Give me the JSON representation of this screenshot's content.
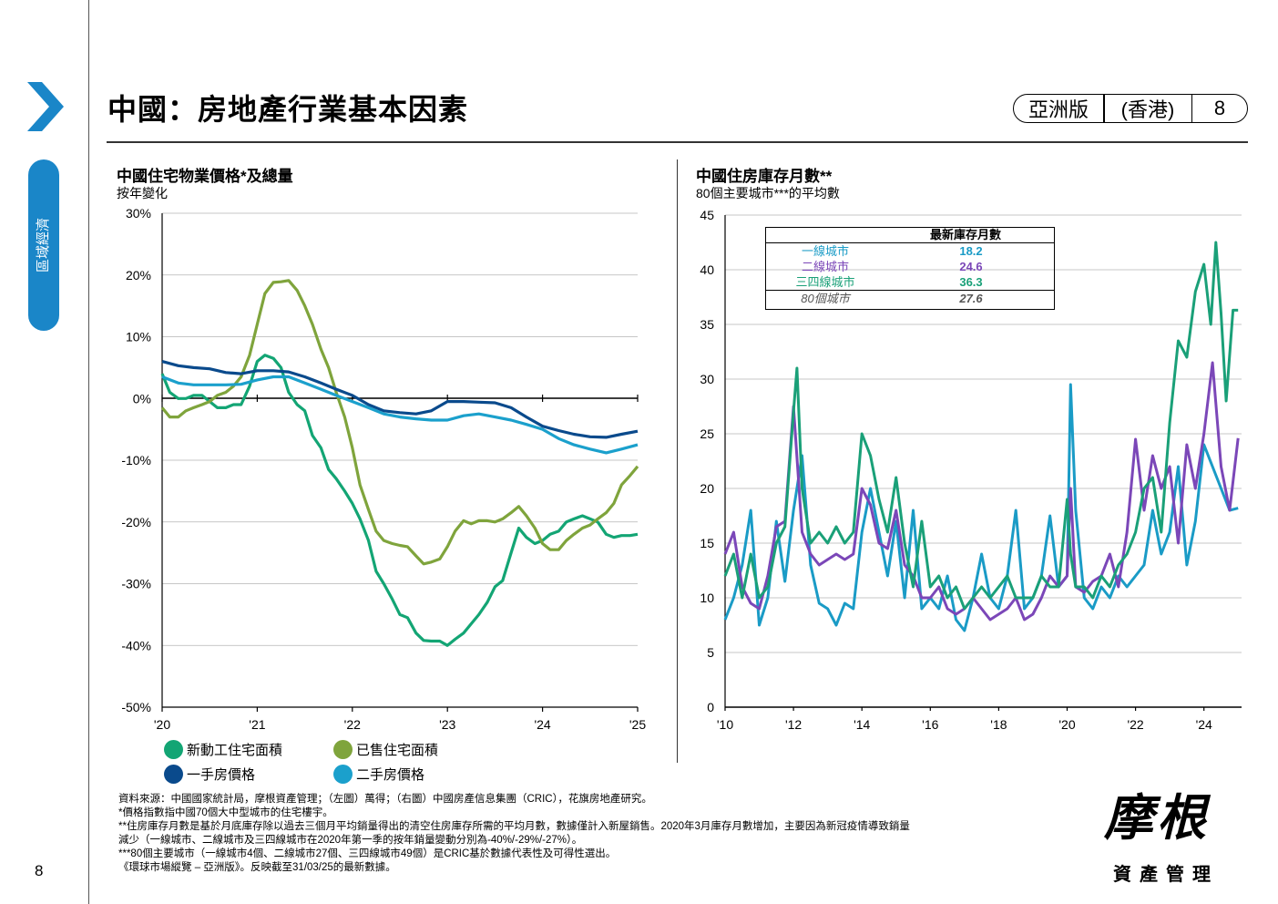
{
  "page": {
    "title": "中國：房地產行業基本因素",
    "badge": [
      "亞洲版",
      "(香港)",
      "8"
    ],
    "side_tab": "區域經濟",
    "page_number": "8"
  },
  "left_chart": {
    "title": "中國住宅物業價格*及總量",
    "subtitle": "按年變化",
    "legend": [
      "新動工住宅面積",
      "已售住宅面積",
      "一手房價格",
      "二手房價格"
    ]
  },
  "right_chart": {
    "title": "中國住房庫存月數**",
    "subtitle": "80個主要城市***的平均數",
    "table_header": "最新庫存月數",
    "table_rows": [
      {
        "label": "一線城市",
        "value": "18.2",
        "color": "#1a9bc6"
      },
      {
        "label": "二線城市",
        "value": "24.6",
        "color": "#7b47b8"
      },
      {
        "label": "三四線城市",
        "value": "36.3",
        "color": "#1aa078"
      },
      {
        "label": "80個城市",
        "value": "27.6",
        "color": "#555555"
      }
    ]
  },
  "notes": [
    "資料來源：中國國家統計局，摩根資產管理；（左圖）萬得；（右圖）中國房產信息集團（CRIC），花旗房地產研究。",
    "*價格指數指中國70個大中型城市的住宅樓宇。",
    "**住房庫存月數是基於月底庫存除以過去三個月平均銷量得出的清空住房庫存所需的平均月數，數據僅計入新屋銷售。2020年3月庫存月數增加，主要因為新冠疫情導致銷量",
    "減少（一線城市、二線城市及三四線城市在2020年第一季的按年銷量變動分別為-40%/-29%/-27%）。",
    "***80個主要城市（一線城市4個、二線城市27個、三四線城市49個）是CRIC基於數據代表性及可得性選出。",
    "《環球市場縱覽 – 亞洲版》。反映截至31/03/25的最新數據。"
  ],
  "logo": {
    "main": "摩根",
    "sub": "資產管理"
  },
  "chart_data": [
    {
      "type": "line",
      "title": "中國住宅物業價格*及總量",
      "subtitle": "按年變化",
      "x_ticks": [
        "'20",
        "'21",
        "'22",
        "'23",
        "'24",
        "'25"
      ],
      "y_ticks": [
        "30%",
        "20%",
        "10%",
        "0%",
        "-10%",
        "-20%",
        "-30%",
        "-40%",
        "-50%"
      ],
      "ylim": [
        -50,
        30
      ],
      "x_range": [
        2020.0,
        2025.0
      ],
      "series": [
        {
          "name": "新動工住宅面積",
          "color": "#13a574",
          "x": [
            2020.0,
            2020.08,
            2020.17,
            2020.25,
            2020.33,
            2020.42,
            2020.5,
            2020.58,
            2020.67,
            2020.75,
            2020.83,
            2020.92,
            2021.0,
            2021.08,
            2021.17,
            2021.25,
            2021.33,
            2021.42,
            2021.5,
            2021.58,
            2021.67,
            2021.75,
            2021.83,
            2021.92,
            2022.0,
            2022.08,
            2022.17,
            2022.25,
            2022.33,
            2022.42,
            2022.5,
            2022.58,
            2022.67,
            2022.75,
            2022.83,
            2022.92,
            2023.0,
            2023.08,
            2023.17,
            2023.25,
            2023.33,
            2023.42,
            2023.5,
            2023.58,
            2023.67,
            2023.75,
            2023.83,
            2023.92,
            2024.0,
            2024.08,
            2024.17,
            2024.25,
            2024.33,
            2024.42,
            2024.5,
            2024.58,
            2024.67,
            2024.75,
            2024.83,
            2024.92,
            2025.0
          ],
          "y": [
            4,
            1,
            0,
            0,
            0.5,
            0.5,
            -0.5,
            -1.5,
            -1.5,
            -1,
            -1,
            2,
            6,
            7,
            6.5,
            5,
            1,
            -1,
            -2,
            -6,
            -8,
            -11.5,
            -13,
            -15,
            -17,
            -19.5,
            -23,
            -28,
            -30,
            -32.5,
            -35,
            -35.5,
            -38,
            -39.2,
            -39.3,
            -39.3,
            -40,
            -39,
            -38,
            -36.5,
            -35,
            -33,
            -30.5,
            -29.5,
            -25,
            -21,
            -22.5,
            -23.5,
            -23,
            -22,
            -21.5,
            -20,
            -19.5,
            -19,
            -19.5,
            -20,
            -22,
            -22.5,
            -22.2,
            -22.2,
            -22
          ]
        },
        {
          "name": "已售住宅面積",
          "color": "#7fa43c",
          "x": [
            2020.0,
            2020.08,
            2020.17,
            2020.25,
            2020.33,
            2020.42,
            2020.5,
            2020.58,
            2020.67,
            2020.75,
            2020.83,
            2020.92,
            2021.0,
            2021.08,
            2021.17,
            2021.25,
            2021.33,
            2021.42,
            2021.5,
            2021.58,
            2021.67,
            2021.75,
            2021.83,
            2021.92,
            2022.0,
            2022.08,
            2022.17,
            2022.25,
            2022.33,
            2022.42,
            2022.5,
            2022.58,
            2022.67,
            2022.75,
            2022.83,
            2022.92,
            2023.0,
            2023.08,
            2023.17,
            2023.25,
            2023.33,
            2023.42,
            2023.5,
            2023.58,
            2023.67,
            2023.75,
            2023.83,
            2023.92,
            2024.0,
            2024.08,
            2024.17,
            2024.25,
            2024.33,
            2024.42,
            2024.5,
            2024.58,
            2024.67,
            2024.75,
            2024.83,
            2024.92,
            2025.0
          ],
          "y": [
            -1.5,
            -3,
            -3,
            -2,
            -1.5,
            -1,
            -0.5,
            0.5,
            1,
            2,
            3.5,
            7,
            12,
            17,
            18.8,
            18.9,
            19.1,
            17.5,
            15,
            12,
            8,
            5,
            1,
            -3,
            -8,
            -14,
            -18,
            -21.5,
            -23,
            -23.5,
            -23.8,
            -24,
            -25.5,
            -26.8,
            -26.5,
            -26,
            -24,
            -21.5,
            -19.8,
            -20.3,
            -19.8,
            -19.8,
            -20,
            -19.5,
            -18.5,
            -17.5,
            -19,
            -21,
            -23.5,
            -24.5,
            -24.5,
            -23,
            -22,
            -21,
            -20.5,
            -19.5,
            -18.5,
            -17,
            -14,
            -12.5,
            -11
          ]
        },
        {
          "name": "一手房價格",
          "color": "#0a4a8c",
          "x": [
            2020.0,
            2020.17,
            2020.33,
            2020.5,
            2020.67,
            2020.83,
            2021.0,
            2021.17,
            2021.33,
            2021.5,
            2021.67,
            2021.83,
            2022.0,
            2022.17,
            2022.33,
            2022.5,
            2022.67,
            2022.83,
            2023.0,
            2023.17,
            2023.33,
            2023.5,
            2023.67,
            2023.83,
            2024.0,
            2024.17,
            2024.33,
            2024.5,
            2024.67,
            2024.83,
            2025.0
          ],
          "y": [
            6,
            5.3,
            5,
            4.8,
            4.2,
            4,
            4.5,
            4.5,
            4.3,
            3.5,
            2.5,
            1.5,
            0.5,
            -1,
            -2,
            -2.3,
            -2.5,
            -2,
            -0.5,
            -0.5,
            -0.6,
            -0.7,
            -1.5,
            -3,
            -4.5,
            -5.2,
            -5.8,
            -6.2,
            -6.3,
            -5.8,
            -5.3
          ]
        },
        {
          "name": "二手房價格",
          "color": "#1ba0cc",
          "x": [
            2020.0,
            2020.17,
            2020.33,
            2020.5,
            2020.67,
            2020.83,
            2021.0,
            2021.17,
            2021.33,
            2021.5,
            2021.67,
            2021.83,
            2022.0,
            2022.17,
            2022.33,
            2022.5,
            2022.67,
            2022.83,
            2023.0,
            2023.17,
            2023.33,
            2023.5,
            2023.67,
            2023.83,
            2024.0,
            2024.17,
            2024.33,
            2024.5,
            2024.67,
            2024.83,
            2025.0
          ],
          "y": [
            3.5,
            2.5,
            2.2,
            2.2,
            2.2,
            2.3,
            3,
            3.5,
            3.5,
            2.5,
            1.5,
            0.5,
            -0.5,
            -1.5,
            -2.5,
            -3,
            -3.3,
            -3.5,
            -3.5,
            -2.8,
            -2.5,
            -3,
            -3.5,
            -4.2,
            -5,
            -6.5,
            -7.5,
            -8.2,
            -8.8,
            -8.2,
            -7.5
          ]
        }
      ],
      "legend_placement": "bottom"
    },
    {
      "type": "line",
      "title": "中國住房庫存月數**",
      "subtitle": "80個主要城市***的平均數",
      "x_ticks": [
        "'10",
        "'12",
        "'14",
        "'16",
        "'18",
        "'20",
        "'22",
        "'24"
      ],
      "y_ticks": [
        "45",
        "40",
        "35",
        "30",
        "25",
        "20",
        "15",
        "10",
        "5",
        "0"
      ],
      "ylim": [
        0,
        45
      ],
      "x_range": [
        2010.0,
        2025.1
      ],
      "series": [
        {
          "name": "一線城市",
          "color": "#1a9bc6",
          "x": [
            2010.0,
            2010.25,
            2010.5,
            2010.75,
            2011.0,
            2011.25,
            2011.5,
            2011.75,
            2012.0,
            2012.25,
            2012.5,
            2012.75,
            2013.0,
            2013.25,
            2013.5,
            2013.75,
            2014.0,
            2014.25,
            2014.5,
            2014.75,
            2015.0,
            2015.25,
            2015.5,
            2015.75,
            2016.0,
            2016.25,
            2016.5,
            2016.75,
            2017.0,
            2017.25,
            2017.5,
            2017.75,
            2018.0,
            2018.25,
            2018.5,
            2018.75,
            2019.0,
            2019.25,
            2019.5,
            2019.75,
            2020.0,
            2020.1,
            2020.25,
            2020.5,
            2020.75,
            2021.0,
            2021.25,
            2021.5,
            2021.75,
            2022.0,
            2022.25,
            2022.5,
            2022.75,
            2023.0,
            2023.25,
            2023.5,
            2023.75,
            2024.0,
            2024.25,
            2024.5,
            2024.75,
            2025.0
          ],
          "y": [
            8,
            10,
            13,
            18,
            7.5,
            10,
            17,
            11.5,
            18,
            23,
            13,
            9.5,
            9,
            7.5,
            9.5,
            9,
            16,
            20,
            16,
            12,
            17,
            10,
            18,
            9,
            10,
            9,
            12,
            8,
            7,
            10,
            14,
            10,
            9,
            12,
            18,
            9,
            10,
            12,
            17.5,
            11,
            12,
            29.5,
            18,
            10,
            9,
            11,
            10,
            12,
            11,
            12,
            13,
            18,
            14,
            16,
            22,
            13,
            17,
            24,
            22,
            20,
            18,
            18.2
          ]
        },
        {
          "name": "二線城市",
          "color": "#7b47b8",
          "x": [
            2010.0,
            2010.25,
            2010.5,
            2010.75,
            2011.0,
            2011.25,
            2011.5,
            2011.75,
            2012.0,
            2012.25,
            2012.5,
            2012.75,
            2013.0,
            2013.25,
            2013.5,
            2013.75,
            2014.0,
            2014.25,
            2014.5,
            2014.75,
            2015.0,
            2015.25,
            2015.5,
            2015.75,
            2016.0,
            2016.25,
            2016.5,
            2016.75,
            2017.0,
            2017.25,
            2017.5,
            2017.75,
            2018.0,
            2018.25,
            2018.5,
            2018.75,
            2019.0,
            2019.25,
            2019.5,
            2019.75,
            2020.0,
            2020.1,
            2020.25,
            2020.5,
            2020.75,
            2021.0,
            2021.25,
            2021.5,
            2021.75,
            2022.0,
            2022.25,
            2022.5,
            2022.75,
            2023.0,
            2023.25,
            2023.5,
            2023.75,
            2024.0,
            2024.25,
            2024.5,
            2024.75,
            2025.0
          ],
          "y": [
            14,
            16,
            11,
            9.5,
            9,
            12,
            16.5,
            17,
            27.5,
            16,
            14,
            13,
            13.5,
            14,
            13.5,
            14,
            20,
            18.5,
            15,
            14.5,
            18,
            13,
            12,
            10,
            10,
            11,
            9,
            8.5,
            9,
            10,
            9,
            8,
            8.5,
            9,
            10,
            8,
            8.5,
            10,
            12,
            11,
            12,
            20,
            11,
            10.5,
            11.5,
            12,
            14,
            11,
            16,
            24.5,
            18,
            23,
            20,
            22,
            15,
            24,
            20,
            25,
            31.5,
            22,
            18,
            24.6
          ]
        },
        {
          "name": "三四線城市",
          "color": "#1aa078",
          "x": [
            2010.0,
            2010.25,
            2010.5,
            2010.75,
            2011.0,
            2011.25,
            2011.5,
            2011.75,
            2012.0,
            2012.1,
            2012.25,
            2012.5,
            2012.75,
            2013.0,
            2013.25,
            2013.5,
            2013.75,
            2014.0,
            2014.25,
            2014.5,
            2014.75,
            2015.0,
            2015.25,
            2015.5,
            2015.75,
            2016.0,
            2016.25,
            2016.5,
            2016.75,
            2017.0,
            2017.25,
            2017.5,
            2017.75,
            2018.0,
            2018.25,
            2018.5,
            2018.75,
            2019.0,
            2019.25,
            2019.5,
            2019.75,
            2020.0,
            2020.1,
            2020.25,
            2020.5,
            2020.75,
            2021.0,
            2021.25,
            2021.5,
            2021.75,
            2022.0,
            2022.25,
            2022.5,
            2022.75,
            2023.0,
            2023.25,
            2023.5,
            2023.75,
            2024.0,
            2024.2,
            2024.35,
            2024.5,
            2024.65,
            2024.85,
            2025.0
          ],
          "y": [
            12,
            14,
            10,
            14,
            10,
            11,
            15,
            16.5,
            27,
            31,
            20,
            15,
            16,
            15,
            16.5,
            15,
            16,
            25,
            23,
            19,
            16,
            21,
            15,
            11,
            17,
            11,
            12,
            10,
            11,
            9,
            10,
            11,
            10,
            11,
            12,
            10,
            10,
            10,
            12,
            11,
            11,
            19,
            14,
            11,
            11,
            10,
            12,
            11,
            13,
            14,
            16,
            20,
            21,
            16,
            26,
            33.5,
            32,
            38,
            40.5,
            35,
            42.5,
            36,
            28,
            36.3,
            36.3
          ]
        }
      ],
      "legend_placement": "table top-left"
    }
  ]
}
